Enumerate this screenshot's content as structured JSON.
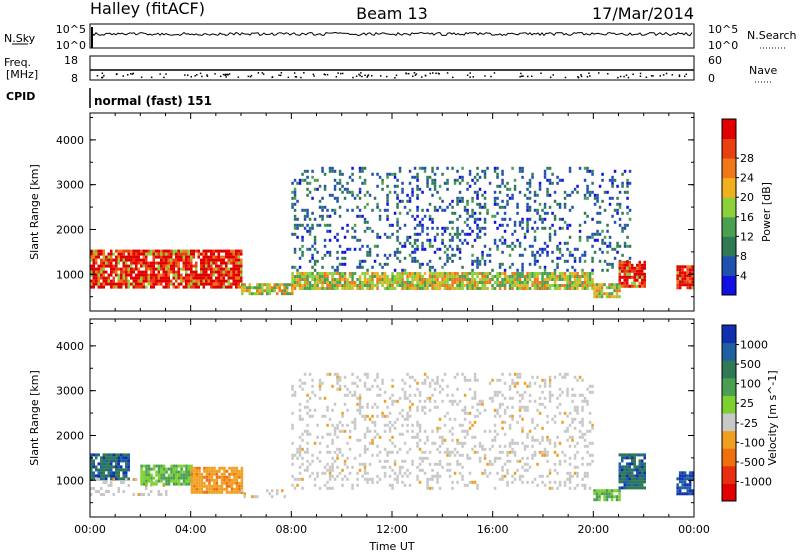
{
  "header": {
    "station": "Halley (fitACF)",
    "beam": "Beam 13",
    "date": "17/Mar/2014"
  },
  "panels": {
    "nsky": {
      "label": "N.Sky",
      "left_ticks": [
        "10^5",
        "10^0"
      ],
      "right_label": "N.Search",
      "right_ticks": [
        "10^5",
        "10^0"
      ]
    },
    "freq": {
      "label_line1": "Freq.",
      "label_line2": "[MHz]",
      "left_ticks": [
        "18",
        "8"
      ],
      "right_label": "Nave",
      "right_ticks": [
        "60",
        "0"
      ]
    },
    "cpid": {
      "label": "CPID",
      "value": "normal (fast) 151"
    }
  },
  "chart_data": [
    {
      "type": "heatmap",
      "name": "power",
      "ylabel": "Slant Range [km]",
      "xlabel": "",
      "yticks": [
        1000,
        2000,
        3000,
        4000
      ],
      "ylim": [
        180,
        4600
      ],
      "xlim": [
        0,
        24
      ],
      "colorbar": {
        "label": "Power [dB]",
        "ticks": [
          "4",
          "8",
          "12",
          "16",
          "20",
          "24",
          "28"
        ],
        "colors": [
          "#1010e0",
          "#2050b0",
          "#2f7a55",
          "#4aa050",
          "#8cd03a",
          "#f0b020",
          "#f07818",
          "#e84010",
          "#e00000"
        ]
      },
      "regions": [
        {
          "t0": 0.0,
          "t1": 6.0,
          "r0": 700,
          "r1": 1550,
          "level": "high"
        },
        {
          "t0": 6.0,
          "t1": 8.0,
          "r0": 550,
          "r1": 800,
          "level": "mid"
        },
        {
          "t0": 8.0,
          "t1": 20.0,
          "r0": 700,
          "r1": 1050,
          "level": "mid"
        },
        {
          "t0": 8.0,
          "t1": 21.5,
          "r0": 1100,
          "r1": 3400,
          "level": "low"
        },
        {
          "t0": 20.0,
          "t1": 21.0,
          "r0": 500,
          "r1": 800,
          "level": "mid"
        },
        {
          "t0": 21.0,
          "t1": 22.0,
          "r0": 700,
          "r1": 1300,
          "level": "high"
        },
        {
          "t0": 23.3,
          "t1": 24.0,
          "r0": 700,
          "r1": 1200,
          "level": "high"
        }
      ]
    },
    {
      "type": "heatmap",
      "name": "velocity",
      "ylabel": "Slant Range [km]",
      "xlabel": "Time UT",
      "yticks": [
        1000,
        2000,
        3000,
        4000
      ],
      "xticks": [
        "00:00",
        "04:00",
        "08:00",
        "12:00",
        "16:00",
        "20:00",
        "00:00"
      ],
      "ylim": [
        180,
        4600
      ],
      "xlim": [
        0,
        24
      ],
      "colorbar": {
        "label": "Velocity [m s^-1]",
        "ticks": [
          "1000",
          "500",
          "100",
          "25",
          "-25",
          "-100",
          "-500",
          "-1000"
        ],
        "colors": [
          "#1030b0",
          "#2060a0",
          "#2f7a55",
          "#4aa050",
          "#7cd030",
          "#c8c8c8",
          "#f0a020",
          "#f07010",
          "#e83010",
          "#e00000"
        ]
      },
      "regions": [
        {
          "t0": 0.0,
          "t1": 1.5,
          "r0": 1050,
          "r1": 1600,
          "level": "pos"
        },
        {
          "t0": 0.0,
          "t1": 3.0,
          "r0": 700,
          "r1": 1050,
          "level": "gray"
        },
        {
          "t0": 2.0,
          "t1": 4.0,
          "r0": 900,
          "r1": 1350,
          "level": "green"
        },
        {
          "t0": 4.0,
          "t1": 6.0,
          "r0": 700,
          "r1": 1300,
          "level": "neg"
        },
        {
          "t0": 6.0,
          "t1": 8.0,
          "r0": 650,
          "r1": 800,
          "level": "gray"
        },
        {
          "t0": 8.0,
          "t1": 20.0,
          "r0": 800,
          "r1": 3400,
          "level": "gray"
        },
        {
          "t0": 20.0,
          "t1": 21.0,
          "r0": 550,
          "r1": 800,
          "level": "green"
        },
        {
          "t0": 21.0,
          "t1": 22.0,
          "r0": 800,
          "r1": 1600,
          "level": "pos"
        },
        {
          "t0": 23.3,
          "t1": 24.0,
          "r0": 700,
          "r1": 1200,
          "level": "blue"
        }
      ]
    }
  ]
}
